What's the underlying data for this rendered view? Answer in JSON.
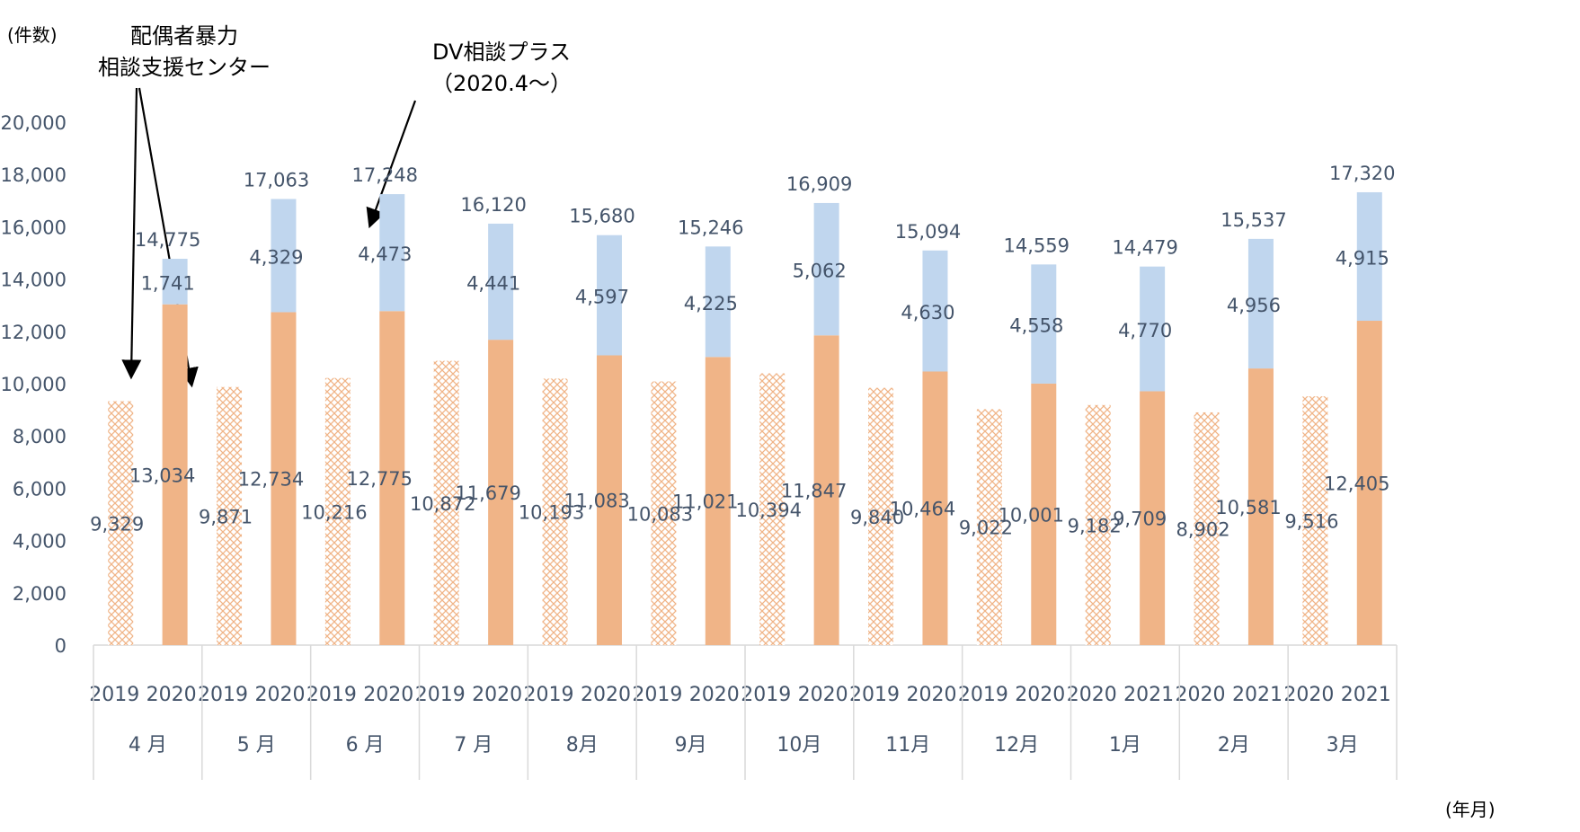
{
  "chart_data": {
    "type": "bar",
    "y_unit_label": "(件数)",
    "x_unit_label": "(年月)",
    "ylim": [
      0,
      20000
    ],
    "yticks": [
      "0",
      "2,000",
      "4,000",
      "6,000",
      "8,000",
      "10,000",
      "12,000",
      "14,000",
      "16,000",
      "18,000",
      "20,000"
    ],
    "annotations": [
      {
        "id": "center",
        "lines": [
          "配偶者暴力",
          "相談支援センター"
        ]
      },
      {
        "id": "plus",
        "lines": [
          "DV相談プラス",
          "（2020.4～）"
        ]
      }
    ],
    "groups": [
      {
        "month": "4 月",
        "years": [
          "2019",
          "2020"
        ],
        "prev": 9329,
        "prev_label": "9,329",
        "center": 13034,
        "center_label": "13,034",
        "plus": 1741,
        "plus_label": "1,741",
        "total_label": "14,775"
      },
      {
        "month": "5 月",
        "years": [
          "2019",
          "2020"
        ],
        "prev": 9871,
        "prev_label": "9,871",
        "center": 12734,
        "center_label": "12,734",
        "plus": 4329,
        "plus_label": "4,329",
        "total_label": "17,063"
      },
      {
        "month": "6 月",
        "years": [
          "2019",
          "2020"
        ],
        "prev": 10216,
        "prev_label": "10,216",
        "center": 12775,
        "center_label": "12,775",
        "plus": 4473,
        "plus_label": "4,473",
        "total_label": "17,248"
      },
      {
        "month": "7 月",
        "years": [
          "2019",
          "2020"
        ],
        "prev": 10872,
        "prev_label": "10,872",
        "center": 11679,
        "center_label": "11,679",
        "plus": 4441,
        "plus_label": "4,441",
        "total_label": "16,120"
      },
      {
        "month": "8月",
        "years": [
          "2019",
          "2020"
        ],
        "prev": 10193,
        "prev_label": "10,193",
        "center": 11083,
        "center_label": "11,083",
        "plus": 4597,
        "plus_label": "4,597",
        "total_label": "15,680"
      },
      {
        "month": "9月",
        "years": [
          "2019",
          "2020"
        ],
        "prev": 10083,
        "prev_label": "10,083",
        "center": 11021,
        "center_label": "11,021",
        "plus": 4225,
        "plus_label": "4,225",
        "total_label": "15,246"
      },
      {
        "month": "10月",
        "years": [
          "2019",
          "2020"
        ],
        "prev": 10394,
        "prev_label": "10,394",
        "center": 11847,
        "center_label": "11,847",
        "plus": 5062,
        "plus_label": "5,062",
        "total_label": "16,909"
      },
      {
        "month": "11月",
        "years": [
          "2019",
          "2020"
        ],
        "prev": 9840,
        "prev_label": "9,840",
        "center": 10464,
        "center_label": "10,464",
        "plus": 4630,
        "plus_label": "4,630",
        "total_label": "15,094"
      },
      {
        "month": "12月",
        "years": [
          "2019",
          "2020"
        ],
        "prev": 9022,
        "prev_label": "9,022",
        "center": 10001,
        "center_label": "10,001",
        "plus": 4558,
        "plus_label": "4,558",
        "total_label": "14,559"
      },
      {
        "month": "1月",
        "years": [
          "2020",
          "2021"
        ],
        "prev": 9182,
        "prev_label": "9,182",
        "center": 9709,
        "center_label": "9,709",
        "plus": 4770,
        "plus_label": "4,770",
        "total_label": "14,479"
      },
      {
        "month": "2月",
        "years": [
          "2020",
          "2021"
        ],
        "prev": 8902,
        "prev_label": "8,902",
        "center": 10581,
        "center_label": "10,581",
        "plus": 4956,
        "plus_label": "4,956",
        "total_label": "15,537"
      },
      {
        "month": "3月",
        "years": [
          "2020",
          "2021"
        ],
        "prev": 9516,
        "prev_label": "9,516",
        "center": 12405,
        "center_label": "12,405",
        "plus": 4915,
        "plus_label": "4,915",
        "total_label": "17,320"
      }
    ],
    "colors": {
      "center_fill": "#f0b487",
      "plus_fill": "#c0d6ee",
      "prev_pattern": "#f0b487",
      "text": "#44546a",
      "grid": "#d9d9d9"
    }
  }
}
